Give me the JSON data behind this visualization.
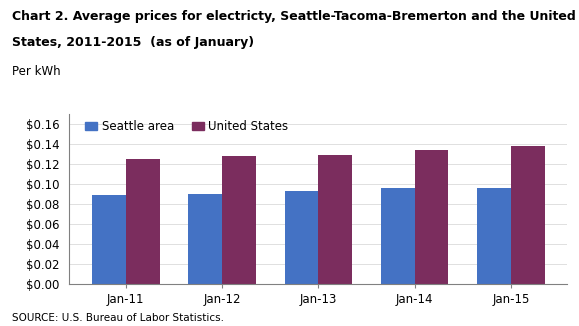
{
  "title_line1": "Chart 2. Average prices for electricty, Seattle-Tacoma-Bremerton and the United",
  "title_line2": "States, 2011-2015  (as of January)",
  "ylabel": "Per kWh",
  "source": "SOURCE: U.S. Bureau of Labor Statistics.",
  "categories": [
    "Jan-11",
    "Jan-12",
    "Jan-13",
    "Jan-14",
    "Jan-15"
  ],
  "seattle_values": [
    0.089,
    0.09,
    0.093,
    0.096,
    0.096
  ],
  "us_values": [
    0.125,
    0.128,
    0.129,
    0.134,
    0.138
  ],
  "seattle_color": "#4472C4",
  "us_color": "#7B2D5E",
  "ylim": [
    0,
    0.17
  ],
  "yticks": [
    0.0,
    0.02,
    0.04,
    0.06,
    0.08,
    0.1,
    0.12,
    0.14,
    0.16
  ],
  "legend_seattle": "Seattle area",
  "legend_us": "United States",
  "bar_width": 0.35,
  "title_fontsize": 9.0,
  "axis_fontsize": 8.5,
  "tick_fontsize": 8.5,
  "legend_fontsize": 8.5,
  "source_fontsize": 7.5
}
